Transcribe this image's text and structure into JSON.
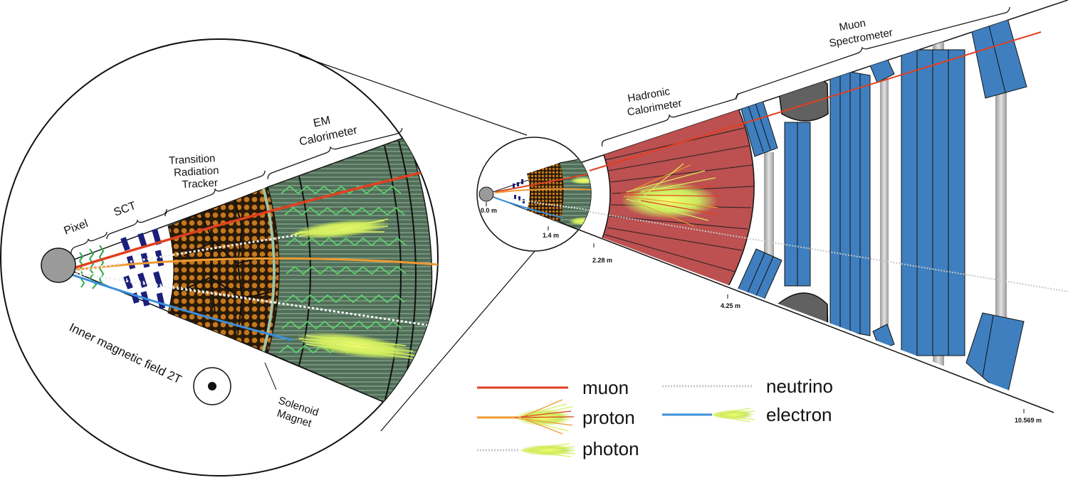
{
  "zoom": {
    "pixel": "Pixel",
    "sct": "SCT",
    "trt": [
      "Transition",
      "Radiation",
      "Tracker"
    ],
    "em": [
      "EM",
      "Calorimeter"
    ],
    "field": "Inner magnetic field 2T",
    "solenoid": [
      "Solenoid",
      "Magnet"
    ]
  },
  "overview": {
    "hadronic": [
      "Hadronic",
      "Calorimeter"
    ],
    "muon_spectrometer": [
      "Muon",
      "Spectrometer"
    ],
    "distances": {
      "d0": "0.0 m",
      "d1": "1.4 m",
      "d2": "2.28 m",
      "d3": "4.25 m",
      "d4": "10.569 m"
    }
  },
  "legend": {
    "muon": "muon",
    "proton": "proton",
    "photon": "photon",
    "neutrino": "neutrino",
    "electron": "electron"
  },
  "colors": {
    "muon": "#e0401f",
    "proton": "#ee9a33",
    "electron": "#3b8fdc",
    "hadronic": "#bd5050",
    "em_green": "#4f7a58",
    "trt_brown": "#6b4a15",
    "muon_chamber": "#3f7fbf"
  }
}
